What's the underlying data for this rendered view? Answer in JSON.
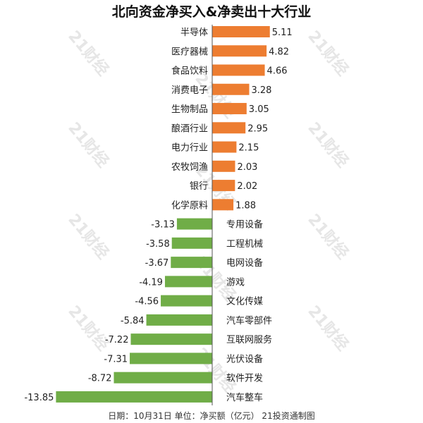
{
  "chart_data": {
    "type": "bar",
    "orientation": "horizontal",
    "title": "北向资金净买入&净卖出十大行业",
    "footer": "日期：10月31日 单位：净买额（亿元） 21投资通制图",
    "categories": [
      "半导体",
      "医疗器械",
      "食品饮料",
      "消费电子",
      "生物制品",
      "酿酒行业",
      "电力行业",
      "农牧饲渔",
      "银行",
      "化学原料",
      "专用设备",
      "工程机械",
      "电网设备",
      "游戏",
      "文化传媒",
      "汽车零部件",
      "互联网服务",
      "光伏设备",
      "软件开发",
      "汽车整车"
    ],
    "values": [
      5.11,
      4.82,
      4.66,
      3.28,
      3.05,
      2.95,
      2.15,
      2.03,
      2.02,
      1.88,
      -3.13,
      -3.58,
      -3.67,
      -4.19,
      -4.56,
      -5.84,
      -7.22,
      -7.31,
      -8.72,
      -13.85
    ],
    "value_labels": [
      "5.11",
      "4.82",
      "4.66",
      "3.28",
      "3.05",
      "2.95",
      "2.15",
      "2.03",
      "2.02",
      "1.88",
      "-3.13",
      "-3.58",
      "-3.67",
      "-4.19",
      "-4.56",
      "-5.84",
      "-7.22",
      "-7.31",
      "-8.72",
      "-13.85"
    ],
    "colors": {
      "positive": "#ED7D31",
      "negative": "#70AD47"
    },
    "xlim": [
      -13.85,
      5.11
    ],
    "grid": false,
    "watermark": "21财经"
  }
}
